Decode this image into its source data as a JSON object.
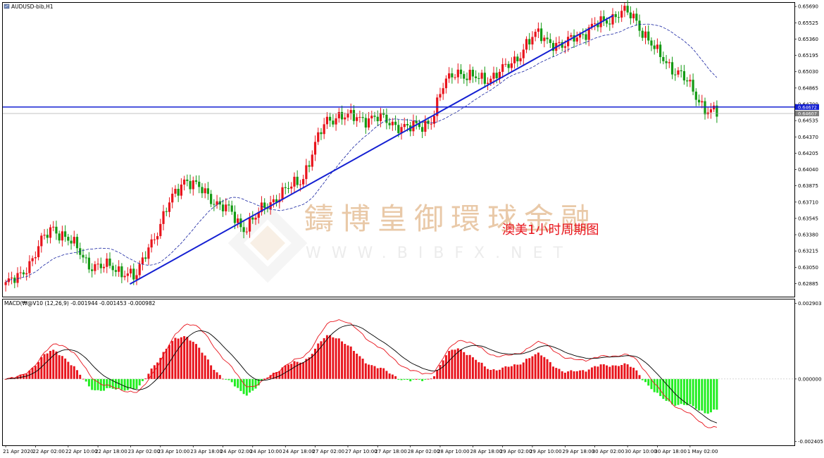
{
  "chart_data": [
    {
      "type": "candlestick",
      "title": "AUDUSD-bib,H1",
      "annotation": "澳美1小时周期图",
      "watermark": {
        "cn": "鑄博皇御環球金融",
        "en": "WWW.BIBFX.NET"
      },
      "y_ticks": [
        "0.65690",
        "0.65525",
        "0.65360",
        "0.65195",
        "0.65030",
        "0.64865",
        "0.64700",
        "0.64535",
        "0.64370",
        "0.64205",
        "0.64040",
        "0.63875",
        "0.63710",
        "0.63545",
        "0.63380",
        "0.63215",
        "0.63050",
        "0.62885"
      ],
      "ylim": [
        0.6276,
        0.6572
      ],
      "horizontal_line": 0.64672,
      "horizontal_line_label": "0.64672",
      "bid_line": 0.64607,
      "bid_label": "0.64607",
      "x_ticks": [
        "21 Apr 2020",
        "22 Apr 02:00",
        "22 Apr 10:00",
        "22 Apr 18:00",
        "23 Apr 02:00",
        "23 Apr 10:00",
        "23 Apr 18:00",
        "24 Apr 02:00",
        "24 Apr 10:00",
        "24 Apr 18:00",
        "27 Apr 02:00",
        "27 Apr 10:00",
        "27 Apr 18:00",
        "28 Apr 02:00",
        "28 Apr 10:00",
        "28 Apr 18:00",
        "29 Apr 02:00",
        "29 Apr 10:00",
        "29 Apr 18:00",
        "30 Apr 02:00",
        "30 Apr 10:00",
        "30 Apr 18:00",
        "1 May 02:00"
      ],
      "key_closes": [
        0.6288,
        0.6293,
        0.631,
        0.633,
        0.6345,
        0.6337,
        0.6323,
        0.6309,
        0.6305,
        0.6305,
        0.6301,
        0.6293,
        0.6327,
        0.6345,
        0.6375,
        0.6395,
        0.6386,
        0.638,
        0.6368,
        0.636,
        0.6345,
        0.6354,
        0.6368,
        0.6378,
        0.6385,
        0.6395,
        0.6425,
        0.6452,
        0.646,
        0.6456,
        0.6456,
        0.6457,
        0.6453,
        0.645,
        0.6445,
        0.6448,
        0.6456,
        0.649,
        0.6506,
        0.6496,
        0.6496,
        0.6498,
        0.6504,
        0.6516,
        0.6532,
        0.6541,
        0.6534,
        0.6526,
        0.654,
        0.6543,
        0.6551,
        0.6558,
        0.6563,
        0.6558,
        0.654,
        0.652,
        0.651,
        0.65,
        0.6482,
        0.6467,
        0.646
      ],
      "trendline": {
        "from": "23 Apr 02:00",
        "from_price": 0.6288,
        "to": "30 Apr 02:00",
        "to_price": 0.656
      }
    },
    {
      "type": "macd",
      "title": "MACD(₩@V10 (12,26,9) -0.001944 -0.001453 -0.000982",
      "y_ticks": [
        "0.002903",
        "0.000000",
        "-0.002405"
      ],
      "ylim": [
        -0.00255,
        0.00303
      ],
      "signal_color": "#e8141c",
      "macd_line_color": "#000000",
      "hist_pos_color": "#e8141c",
      "hist_neg_color": "#22ee22"
    }
  ],
  "colors": {
    "bull": "#e8141c",
    "bear": "#149a14",
    "line": "#1420d2",
    "ma": "#1420a0",
    "axis": "#000000"
  }
}
